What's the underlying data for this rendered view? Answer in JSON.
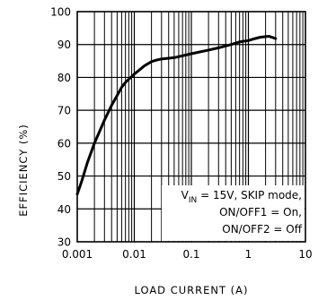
{
  "chart_data": {
    "type": "line",
    "xscale": "log",
    "xlim": [
      0.001,
      10
    ],
    "ylim": [
      30,
      100
    ],
    "grid": true,
    "xlabel": "LOAD CURRENT (A)",
    "ylabel": "EFFICIENCY (%)",
    "xticks": [
      "0.001",
      "0.01",
      "0.1",
      "1",
      "10"
    ],
    "yticks": [
      "30",
      "40",
      "50",
      "60",
      "70",
      "80",
      "90",
      "100"
    ],
    "annotation": {
      "line1_prefix": "V",
      "line1_sub": "IN",
      "line1_suffix": " = 15V, SKIP mode,",
      "line2": "ON/OFF1 = On,",
      "line3": "ON/OFF2 = Off"
    },
    "series": [
      {
        "x": [
          0.001,
          0.0012,
          0.0015,
          0.002,
          0.003,
          0.004,
          0.005,
          0.006,
          0.007,
          0.01,
          0.015,
          0.02,
          0.025,
          0.03,
          0.05,
          0.1,
          0.2,
          0.3,
          0.5,
          0.7,
          1,
          1.3,
          1.6,
          2,
          2.3,
          2.6,
          3
        ],
        "y": [
          44.5,
          48.5,
          54,
          60,
          67,
          71.5,
          74.5,
          77,
          78.5,
          81,
          83.5,
          84.8,
          85.3,
          85.6,
          86,
          87.2,
          88.3,
          89,
          90,
          90.8,
          91.2,
          91.8,
          92.2,
          92.4,
          92.5,
          92.2,
          91.8
        ]
      }
    ]
  }
}
